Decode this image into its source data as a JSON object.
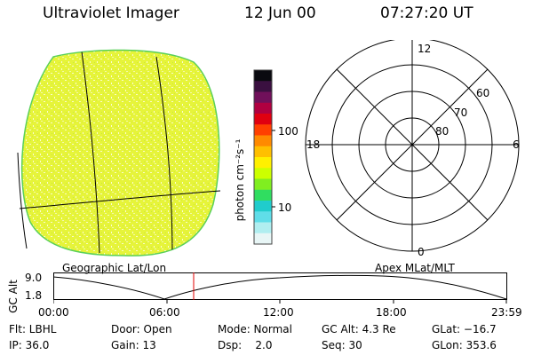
{
  "header": {
    "instrument": "Ultraviolet Imager",
    "date": "12 Jun 00",
    "time": "07:27:20 UT"
  },
  "colorbar": {
    "unit_label": "photon cm⁻²s⁻¹",
    "ticks": [
      "100",
      "10"
    ],
    "colors": [
      "#0a0a10",
      "#3a1040",
      "#70105a",
      "#b00040",
      "#e00010",
      "#ff4000",
      "#ff8a00",
      "#ffbf00",
      "#fff000",
      "#ccff00",
      "#80ee20",
      "#30dd60",
      "#20cccc",
      "#60dde8",
      "#b0eef0",
      "#e8f6f6"
    ]
  },
  "earth_panel": {
    "fill_color": "#e8f542",
    "caption": "Geographic Lat/Lon"
  },
  "polar_panel": {
    "labels": {
      "top": "12",
      "bottom": "0",
      "left": "18",
      "right": "6"
    },
    "lat_labels": [
      "60",
      "70",
      "80"
    ],
    "caption": "Apex MLat/MLT"
  },
  "altitude_plot": {
    "ylabel": "GC Alt",
    "yticks": [
      "9.0",
      "1.8"
    ],
    "xticks": [
      "00:00",
      "06:00",
      "12:00",
      "18:00",
      "23:59"
    ],
    "marker_color": "#e00000"
  },
  "info": {
    "row1": {
      "flt": "Flt: LBHL",
      "door": "Door: Open",
      "mode": "Mode: Normal",
      "gcalt": "GC Alt: 4.3 Re",
      "glat": "GLat: −16.7"
    },
    "row2": {
      "ip": "IP: 36.0",
      "gain": "Gain: 13",
      "dsp": "Dsp:    2.0",
      "seq": "Seq: 30",
      "glon": "GLon: 353.6"
    }
  }
}
